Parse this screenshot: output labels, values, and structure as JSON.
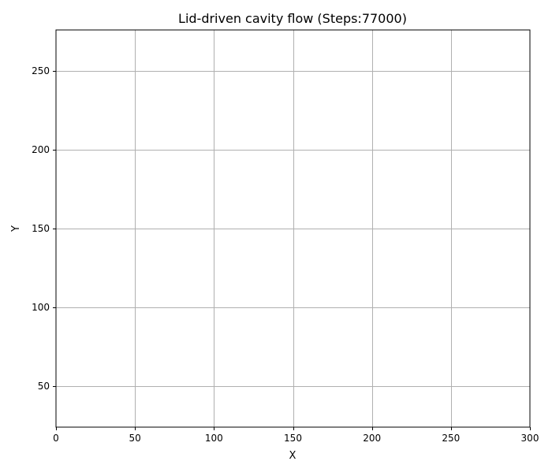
{
  "chart_data": {
    "type": "scatter",
    "title": "Lid-driven cavity flow (Steps:77000)",
    "xlabel": "X",
    "ylabel": "Y",
    "xlim": [
      0,
      300
    ],
    "ylim": [
      24,
      276
    ],
    "xticks": [
      0,
      50,
      100,
      150,
      200,
      250,
      300
    ],
    "yticks": [
      50,
      100,
      150,
      200,
      250
    ],
    "grid": true,
    "legend": "none",
    "series": [],
    "colors": {
      "grid": "#b0b0b0",
      "axes": "#000000",
      "background": "#ffffff"
    }
  }
}
